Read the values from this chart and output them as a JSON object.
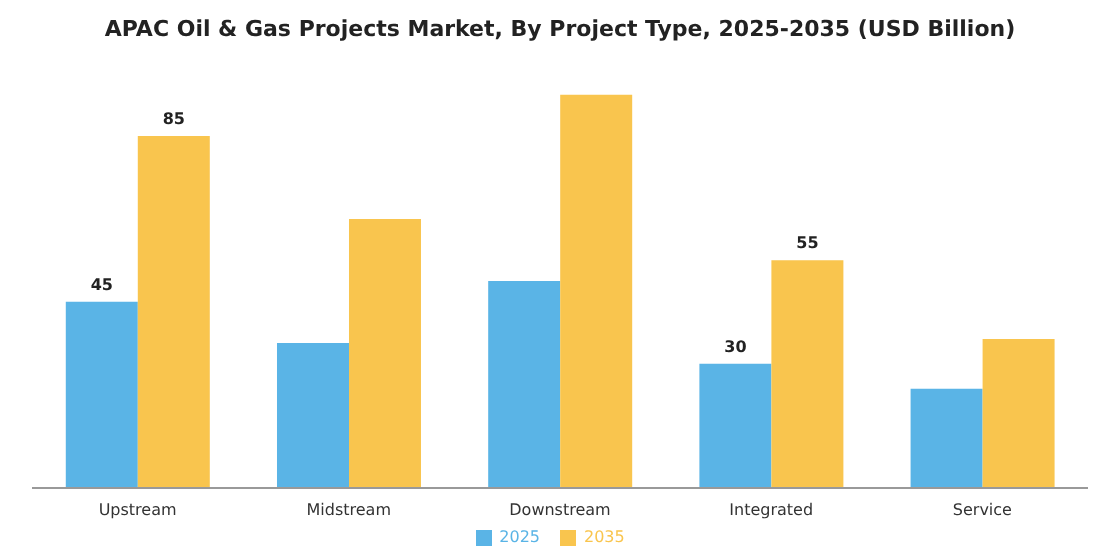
{
  "chart_data": {
    "type": "bar",
    "title": "APAC Oil & Gas Projects Market, By Project Type, 2025-2035 (USD Billion)",
    "categories": [
      "Upstream",
      "Midstream",
      "Downstream",
      "Integrated",
      "Service"
    ],
    "series": [
      {
        "name": "2025",
        "color": "#5ab4e6",
        "values": [
          45,
          35,
          50,
          30,
          24
        ],
        "value_labels": [
          "45",
          null,
          null,
          "30",
          null
        ]
      },
      {
        "name": "2035",
        "color": "#f9c54e",
        "values": [
          85,
          65,
          95,
          55,
          36
        ],
        "value_labels": [
          "85",
          null,
          null,
          "55",
          null
        ]
      }
    ],
    "legend": "bottom",
    "grid": false
  }
}
